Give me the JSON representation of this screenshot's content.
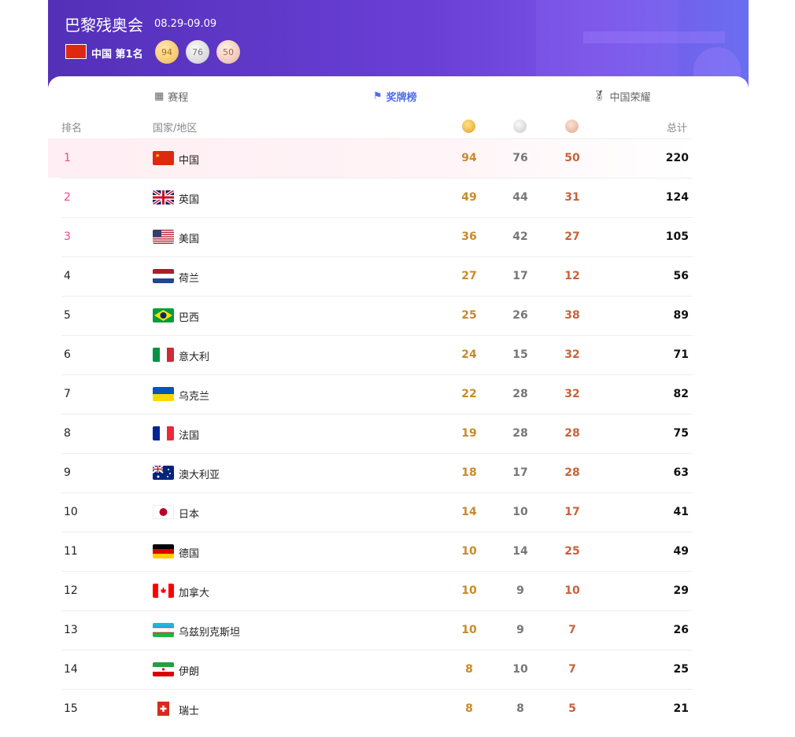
{
  "header": {
    "title": "巴黎残奥会",
    "dates": "08.29-09.09",
    "country": "中国",
    "rank_label": "第1名",
    "gold": "94",
    "silver": "76",
    "bronze": "50"
  },
  "tabs": [
    {
      "label": "赛程",
      "icon": "calendar-icon"
    },
    {
      "label": "奖牌榜",
      "icon": "flag-icon",
      "active": true
    },
    {
      "label": "中国荣耀",
      "icon": "medal-icon"
    }
  ],
  "columns": {
    "rank": "排名",
    "country": "国家/地区",
    "gold": "gold-medal-icon",
    "silver": "silver-medal-icon",
    "bronze": "bronze-medal-icon",
    "total": "总计"
  },
  "colors": {
    "accent": "#4b6cf0",
    "gold": "#c98a28",
    "silver": "#777777",
    "bronze": "#c9623a",
    "top_rank": "#f0478a"
  },
  "rows": [
    {
      "rank": "1",
      "code": "cn",
      "name": "中国",
      "gold": "94",
      "silver": "76",
      "bronze": "50",
      "total": "220"
    },
    {
      "rank": "2",
      "code": "gb",
      "name": "英国",
      "gold": "49",
      "silver": "44",
      "bronze": "31",
      "total": "124"
    },
    {
      "rank": "3",
      "code": "us",
      "name": "美国",
      "gold": "36",
      "silver": "42",
      "bronze": "27",
      "total": "105"
    },
    {
      "rank": "4",
      "code": "nl",
      "name": "荷兰",
      "gold": "27",
      "silver": "17",
      "bronze": "12",
      "total": "56"
    },
    {
      "rank": "5",
      "code": "br",
      "name": "巴西",
      "gold": "25",
      "silver": "26",
      "bronze": "38",
      "total": "89"
    },
    {
      "rank": "6",
      "code": "it",
      "name": "意大利",
      "gold": "24",
      "silver": "15",
      "bronze": "32",
      "total": "71"
    },
    {
      "rank": "7",
      "code": "ua",
      "name": "乌克兰",
      "gold": "22",
      "silver": "28",
      "bronze": "32",
      "total": "82"
    },
    {
      "rank": "8",
      "code": "fr",
      "name": "法国",
      "gold": "19",
      "silver": "28",
      "bronze": "28",
      "total": "75"
    },
    {
      "rank": "9",
      "code": "au",
      "name": "澳大利亚",
      "gold": "18",
      "silver": "17",
      "bronze": "28",
      "total": "63"
    },
    {
      "rank": "10",
      "code": "jp",
      "name": "日本",
      "gold": "14",
      "silver": "10",
      "bronze": "17",
      "total": "41"
    },
    {
      "rank": "11",
      "code": "de",
      "name": "德国",
      "gold": "10",
      "silver": "14",
      "bronze": "25",
      "total": "49"
    },
    {
      "rank": "12",
      "code": "ca",
      "name": "加拿大",
      "gold": "10",
      "silver": "9",
      "bronze": "10",
      "total": "29"
    },
    {
      "rank": "13",
      "code": "uz",
      "name": "乌兹别克斯坦",
      "gold": "10",
      "silver": "9",
      "bronze": "7",
      "total": "26"
    },
    {
      "rank": "14",
      "code": "ir",
      "name": "伊朗",
      "gold": "8",
      "silver": "10",
      "bronze": "7",
      "total": "25"
    },
    {
      "rank": "15",
      "code": "ch",
      "name": "瑞士",
      "gold": "8",
      "silver": "8",
      "bronze": "5",
      "total": "21"
    }
  ]
}
